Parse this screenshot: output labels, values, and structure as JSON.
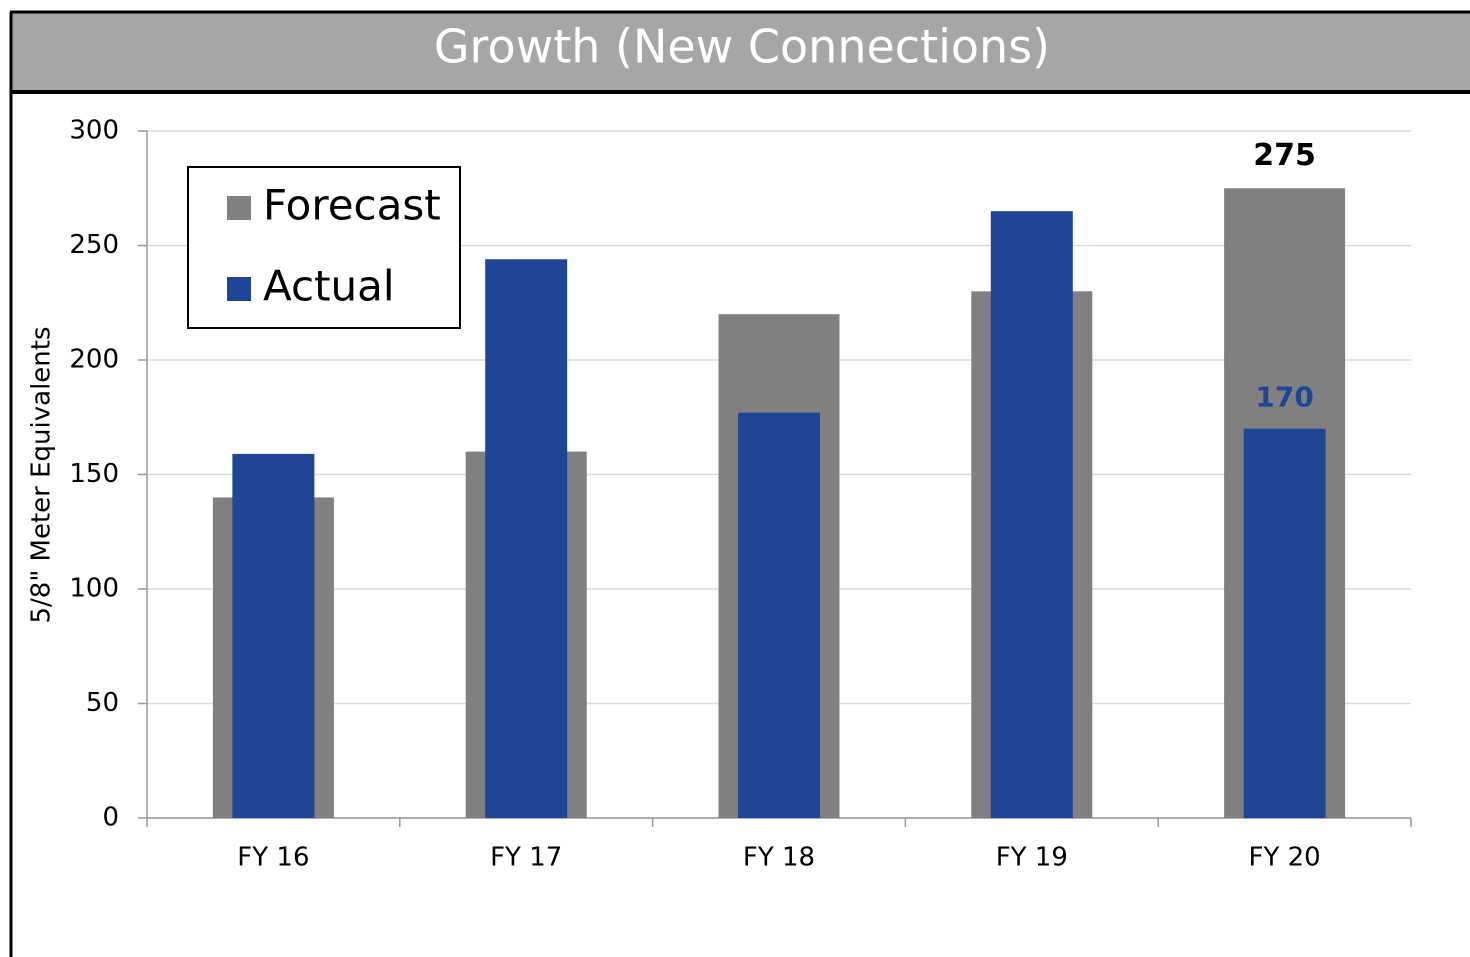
{
  "chart_data": {
    "type": "bar",
    "title": "Growth (New Connections)",
    "y_label": "5/8\" Meter Equivalents",
    "categories": [
      "FY 16",
      "FY 17",
      "FY 18",
      "FY 19",
      "FY 20"
    ],
    "series": [
      {
        "name": "Forecast",
        "color": "#808080",
        "values": [
          140,
          160,
          220,
          230,
          275
        ]
      },
      {
        "name": "Actual",
        "color": "#1f4696",
        "values": [
          159,
          244,
          177,
          265,
          170
        ]
      }
    ],
    "overlap": true,
    "data_labels": "last",
    "ylim": [
      0,
      300
    ],
    "yticks": [
      0,
      50,
      100,
      150,
      200,
      250,
      300
    ],
    "grid": true,
    "legend": "top-left"
  }
}
